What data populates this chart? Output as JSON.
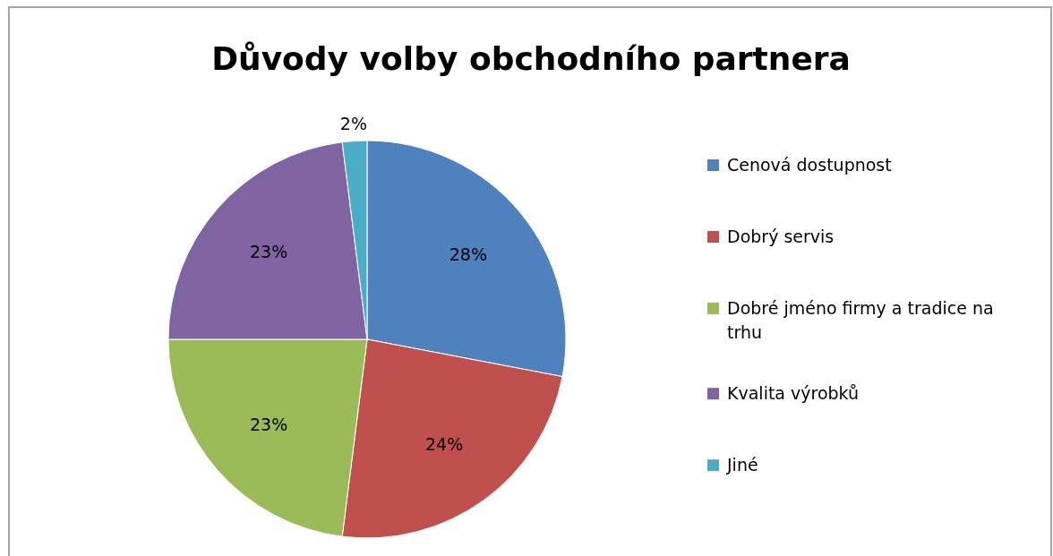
{
  "chart_data": {
    "type": "pie",
    "title": "Důvody volby obchodního partnera",
    "categories": [
      "Cenová dostupnost",
      "Dobrý servis",
      "Dobré jméno firmy a tradice na trhu",
      "Kvalita výrobků",
      "Jiné"
    ],
    "values": [
      28,
      24,
      23,
      23,
      2
    ],
    "colors": [
      "#4f81bd",
      "#c0504d",
      "#9bbb59",
      "#8064a2",
      "#4bacc6"
    ],
    "value_labels": [
      "28%",
      "24%",
      "23%",
      "23%",
      "2%"
    ],
    "legend": "right"
  }
}
